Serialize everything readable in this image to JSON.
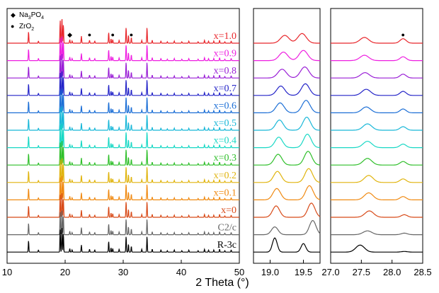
{
  "chart_data": {
    "type": "line",
    "xlabel": "2 Theta (°)",
    "panels": [
      {
        "xlim": [
          10,
          50
        ],
        "ticks": [
          10,
          20,
          30,
          40,
          50
        ],
        "tick_labels": [
          "10",
          "20",
          "30",
          "40",
          "50"
        ]
      },
      {
        "xlim": [
          18.75,
          19.75
        ],
        "ticks": [
          19.0,
          19.5
        ],
        "tick_labels": [
          "19.0",
          "19.5"
        ]
      },
      {
        "xlim": [
          27.0,
          28.5
        ],
        "ticks": [
          27.0,
          27.5,
          28.0,
          28.5
        ],
        "tick_labels": [
          "27.0",
          "27.5",
          "28.0",
          "28.5"
        ]
      }
    ],
    "legend": [
      {
        "symbol": "◆",
        "label": "Na",
        "sub": "3",
        "label_after": "PO",
        "sub2": "4"
      },
      {
        "symbol": "●",
        "label": "ZrO",
        "sub": "2",
        "label_after": "",
        "sub2": ""
      }
    ],
    "markers": [
      {
        "panel": 0,
        "symbol": "◆",
        "x": 20.8
      },
      {
        "panel": 0,
        "symbol": "●",
        "x": 24.2
      },
      {
        "panel": 0,
        "symbol": "●",
        "x": 28.2
      },
      {
        "panel": 0,
        "symbol": "●",
        "x": 31.4
      },
      {
        "panel": 2,
        "symbol": "●",
        "x": 28.18
      }
    ],
    "series": [
      {
        "name": "x=1.0",
        "color": "#e8262b",
        "z1": [
          19.22,
          19.48,
          0.55,
          0.68,
          0.09
        ],
        "z2": [
          27.55,
          28.18,
          0.45,
          0.35
        ]
      },
      {
        "name": "x=0.9",
        "color": "#ee1fe0",
        "z1": [
          19.2,
          19.5,
          0.6,
          0.72,
          0.09
        ],
        "z2": [
          27.55,
          28.18,
          0.42,
          0.3
        ]
      },
      {
        "name": "x=0.8",
        "color": "#9a1fd6",
        "z1": [
          19.18,
          19.52,
          0.62,
          0.78,
          0.09
        ],
        "z2": [
          27.56,
          28.18,
          0.42,
          0.3
        ]
      },
      {
        "name": "x=0.7",
        "color": "#2424c8",
        "z1": [
          19.16,
          19.53,
          0.66,
          0.82,
          0.085
        ],
        "z2": [
          27.58,
          28.18,
          0.48,
          0.32
        ]
      },
      {
        "name": "x=0.6",
        "color": "#1c6fd6",
        "z1": [
          19.15,
          19.54,
          0.7,
          0.88,
          0.085
        ],
        "z2": [
          27.58,
          28.18,
          0.46,
          0.3
        ]
      },
      {
        "name": "x=0.5",
        "color": "#18b7d8",
        "z1": [
          19.14,
          19.55,
          0.72,
          0.92,
          0.08
        ],
        "z2": [
          27.6,
          28.18,
          0.5,
          0.28
        ]
      },
      {
        "name": "x=0.4",
        "color": "#19d8c5",
        "z1": [
          19.13,
          19.56,
          0.74,
          0.95,
          0.08
        ],
        "z2": [
          27.6,
          28.18,
          0.5,
          0.28
        ]
      },
      {
        "name": "x=0.3",
        "color": "#2fbf2a",
        "z1": [
          19.12,
          19.57,
          0.76,
          0.97,
          0.08
        ],
        "z2": [
          27.6,
          28.18,
          0.52,
          0.28
        ]
      },
      {
        "name": "x=0.2",
        "color": "#e0b40d",
        "z1": [
          19.11,
          19.58,
          0.78,
          0.98,
          0.08
        ],
        "z2": [
          27.62,
          28.18,
          0.55,
          0.28
        ]
      },
      {
        "name": "x=0.1",
        "color": "#f08a12",
        "z1": [
          19.1,
          19.59,
          0.8,
          1.0,
          0.08
        ],
        "z2": [
          27.62,
          28.18,
          0.55,
          0.26
        ]
      },
      {
        "name": "x=0",
        "color": "#d84a18",
        "z1": [
          19.09,
          19.62,
          0.8,
          1.0,
          0.075
        ],
        "z2": [
          27.63,
          28.2,
          0.5,
          0.2
        ]
      },
      {
        "name": "C2/c",
        "color": "#666666",
        "z1": [
          19.07,
          19.64,
          0.55,
          1.0,
          0.07
        ],
        "z2": [
          27.6,
          28.2,
          0.3,
          0.12
        ]
      },
      {
        "name": "R-3c",
        "color": "#000000",
        "z1": [
          19.07,
          19.5,
          1.0,
          0.6,
          0.05
        ],
        "z2": [
          27.48,
          28.2,
          0.55,
          0.05
        ]
      }
    ]
  }
}
